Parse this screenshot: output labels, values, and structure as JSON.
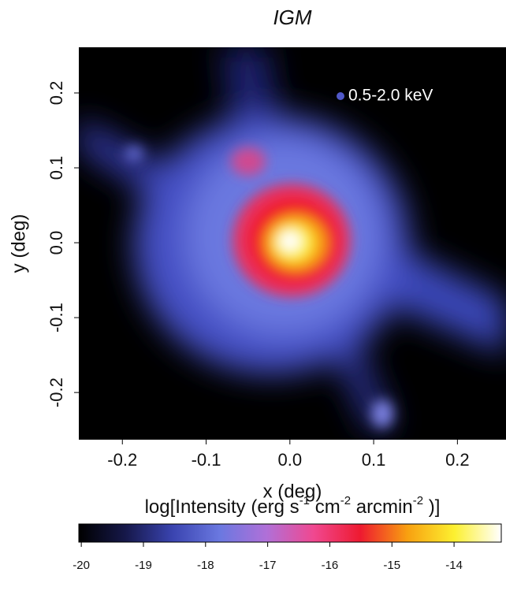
{
  "chart_data": {
    "type": "image",
    "title": "IGM",
    "annotation": "0.5-2.0 keV",
    "xlabel": "x (deg)",
    "ylabel": "y (deg)",
    "xlim": [
      -0.252,
      0.258
    ],
    "ylim": [
      -0.263,
      0.261
    ],
    "xticks": [
      -0.2,
      -0.1,
      {
        "value": 0,
        "label": "0.0"
      },
      0.1,
      0.2
    ],
    "yticks": [
      -0.2,
      -0.1,
      {
        "value": 0,
        "label": "0.0"
      },
      0.1,
      0.2
    ],
    "colorbar": {
      "label": [
        "log[Intensity (erg s",
        "-1",
        " cm",
        "-2",
        " arcmin",
        "-2",
        " )]"
      ],
      "lim": [
        -20.04,
        -13.24
      ],
      "ticks": [
        -20,
        -19,
        -18,
        -17,
        -16,
        -15,
        -14
      ],
      "colormap": [
        "#000000",
        "#16184a",
        "#3a44b0",
        "#6a78e0",
        "#b070d8",
        "#f04890",
        "#ee1a30",
        "#f8a010",
        "#fcf030",
        "#ffffff"
      ]
    }
  }
}
